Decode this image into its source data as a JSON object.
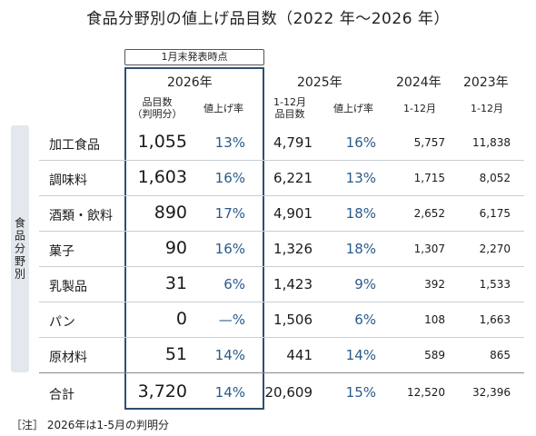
{
  "title": "食品分野別の値上げ品目数（2022 年～2026 年）",
  "note_box": "1月末発表時点",
  "side_label": "食品分野別",
  "headers": {
    "y2026": "2026年",
    "y2026_count_line1": "品目数",
    "y2026_count_line2": "（判明分）",
    "y2026_rate": "値上げ率",
    "y2025": "2025年",
    "y2025_count_line1": "1-12月",
    "y2025_count_line2": "品目数",
    "y2025_rate": "値上げ率",
    "y2024": "2024年",
    "y2024_sub": "1-12月",
    "y2023": "2023年",
    "y2023_sub": "1-12月"
  },
  "rows": [
    {
      "category": "加工食品",
      "c2026": "1,055",
      "r2026": "13%",
      "c2025": "4,791",
      "r2025": "16%",
      "c2024": "5,757",
      "c2023": "11,838"
    },
    {
      "category": "調味料",
      "c2026": "1,603",
      "r2026": "16%",
      "c2025": "6,221",
      "r2025": "13%",
      "c2024": "1,715",
      "c2023": "8,052"
    },
    {
      "category": "酒類・飲料",
      "c2026": "890",
      "r2026": "17%",
      "c2025": "4,901",
      "r2025": "18%",
      "c2024": "2,652",
      "c2023": "6,175"
    },
    {
      "category": "菓子",
      "c2026": "90",
      "r2026": "16%",
      "c2025": "1,326",
      "r2025": "18%",
      "c2024": "1,307",
      "c2023": "2,270"
    },
    {
      "category": "乳製品",
      "c2026": "31",
      "r2026": "6%",
      "c2025": "1,423",
      "r2025": "9%",
      "c2024": "392",
      "c2023": "1,533"
    },
    {
      "category": "パン",
      "c2026": "0",
      "r2026": "—%",
      "c2025": "1,506",
      "r2025": "6%",
      "c2024": "108",
      "c2023": "1,663"
    },
    {
      "category": "原材料",
      "c2026": "51",
      "r2026": "14%",
      "c2025": "441",
      "r2025": "14%",
      "c2024": "589",
      "c2023": "865"
    }
  ],
  "total": {
    "category": "合計",
    "c2026": "3,720",
    "r2026": "14%",
    "c2025": "20,609",
    "r2025": "15%",
    "c2024": "12,520",
    "c2023": "32,396"
  },
  "footnote": "［注］ 2026年は1-5月の判明分",
  "colors": {
    "accent_blue": "#2a5a8a",
    "box_border": "#2f4f6f",
    "side_bg": "#e3e8ee"
  }
}
